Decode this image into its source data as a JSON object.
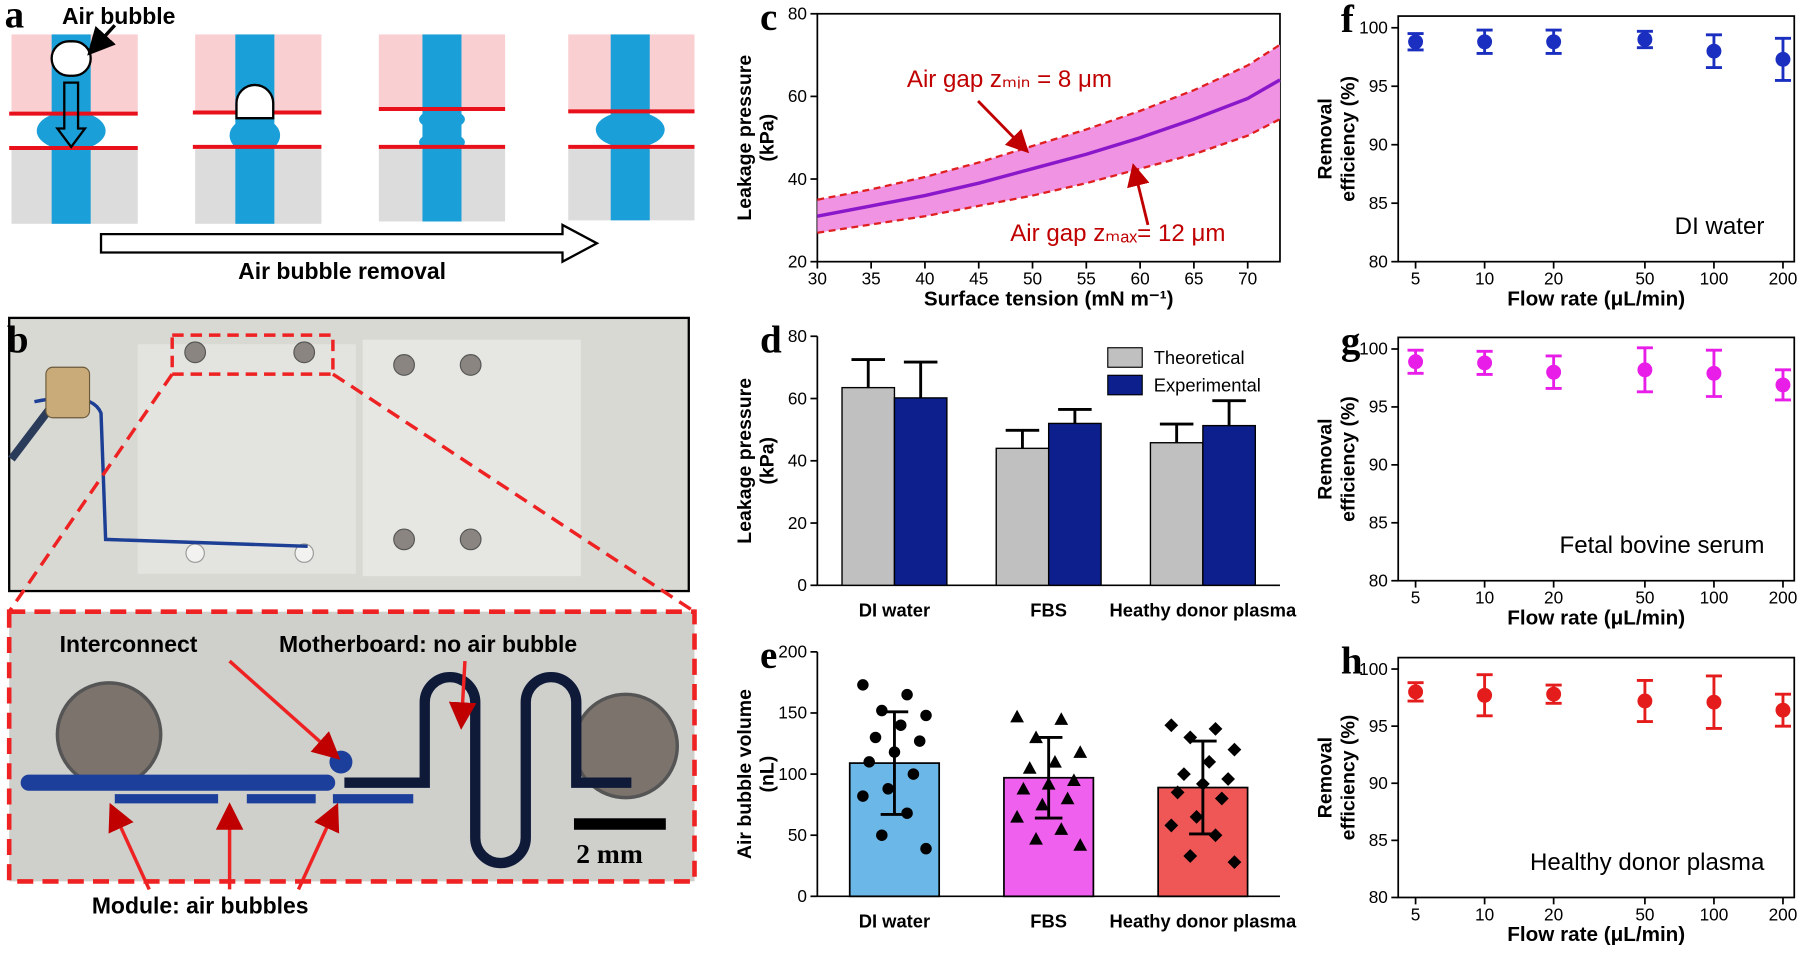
{
  "panel_a": {
    "label": "a",
    "callout": "Air bubble",
    "caption": "Air bubble removal"
  },
  "panel_b": {
    "label": "b",
    "annotations": [
      "Interconnect",
      "Motherboard: no air bubble",
      "Module: air bubbles"
    ],
    "scale_bar": "2 mm"
  },
  "chart_data": [
    {
      "type": "line",
      "panel": "c",
      "xlabel": "Surface tension (mN m⁻¹)",
      "ylabel": [
        "Leakage pressure",
        "(kPa)"
      ],
      "x": [
        30,
        35,
        40,
        45,
        50,
        55,
        60,
        65,
        70,
        73
      ],
      "series": [
        {
          "color": "#e02020",
          "dash": true,
          "values": [
            35,
            37.5,
            40.5,
            44,
            48,
            52,
            56.5,
            61.5,
            67.5,
            72.5
          ]
        },
        {
          "color": "#e02020",
          "dash": true,
          "values": [
            27,
            29,
            31,
            33.5,
            36,
            39,
            42.5,
            46,
            50.5,
            54.5
          ]
        },
        {
          "color": "#8a17c9",
          "values": [
            31,
            33.5,
            36,
            39,
            42.5,
            46,
            50,
            54.5,
            59.5,
            64
          ]
        }
      ],
      "band_color": "#f093e3",
      "frame": true,
      "xlim": [
        30,
        73
      ],
      "xticks": [
        30,
        35,
        40,
        45,
        50,
        55,
        60,
        65,
        70
      ],
      "ylim": [
        20,
        80
      ],
      "yticks": [
        20,
        40,
        60,
        80
      ],
      "annotations": [
        "Air gap zₘᵢₙ = 8 μm",
        "Air gap zₘₐₓ= 12 μm"
      ],
      "annotation_color": "#c00000"
    },
    {
      "type": "bar",
      "panel": "d",
      "ylabel": [
        "Leakage pressure",
        "(kPa)"
      ],
      "categories": [
        "DI water",
        "FBS",
        "Heathy donor plasma"
      ],
      "series": [
        {
          "name": "Theoretical",
          "color": "#c0c0c0",
          "values": [
            63.5,
            44,
            45.8
          ],
          "errors": [
            9,
            5.8,
            6
          ]
        },
        {
          "name": "Experimental",
          "color": "#0c1f8c",
          "values": [
            60.2,
            52,
            51.3
          ],
          "errors": [
            11.5,
            4.5,
            8
          ]
        }
      ],
      "legend": "upper right",
      "ylim": [
        0,
        80
      ],
      "yticks": [
        0,
        20,
        40,
        60,
        80
      ]
    },
    {
      "type": "bar",
      "panel": "e",
      "ylabel": [
        "Air bubble volume",
        "(nL)"
      ],
      "categories": [
        "DI water",
        "FBS",
        "Heathy donor plasma"
      ],
      "values": [
        109,
        97,
        89
      ],
      "errors": [
        42,
        33,
        38
      ],
      "colors": [
        "#6bb8e8",
        "#f060ee",
        "#ef5656"
      ],
      "markers": [
        "circle",
        "triangle",
        "diamond"
      ],
      "points": [
        [
          173,
          165,
          152,
          148,
          140,
          130,
          127,
          118,
          110,
          100,
          88,
          82,
          68,
          50,
          39
        ],
        [
          147,
          145,
          130,
          118,
          110,
          105,
          95,
          92,
          88,
          80,
          75,
          65,
          55,
          47,
          42
        ],
        [
          140,
          137,
          130,
          120,
          110,
          100,
          96,
          92,
          85,
          80,
          65,
          58,
          50,
          33,
          28
        ]
      ],
      "ylim": [
        0,
        200
      ],
      "yticks": [
        0,
        50,
        100,
        150,
        200
      ]
    },
    {
      "type": "scatter",
      "panel": "f",
      "xlabel": "Flow rate (μL/min)",
      "ylabel": [
        "Removal",
        "efficiency (%)"
      ],
      "x": [
        5,
        10,
        20,
        50,
        100,
        200
      ],
      "series": [
        {
          "color": "#1a2fbf",
          "values": [
            98.8,
            98.8,
            98.8,
            99,
            98,
            97.3
          ],
          "errors": [
            0.7,
            1,
            1,
            0.7,
            1.4,
            1.8
          ]
        }
      ],
      "xscale": "log",
      "frame": true,
      "xlim": [
        4.2,
        224
      ],
      "xticks": [
        5,
        10,
        20,
        50,
        100,
        200
      ],
      "ylim": [
        80,
        101
      ],
      "yticks": [
        80,
        85,
        90,
        95,
        100
      ],
      "annotations": [
        "DI water"
      ]
    },
    {
      "type": "scatter",
      "panel": "g",
      "xlabel": "Flow rate (μL/min)",
      "ylabel": [
        "Removal",
        "efficiency (%)"
      ],
      "x": [
        5,
        10,
        20,
        50,
        100,
        200
      ],
      "series": [
        {
          "color": "#e81de8",
          "values": [
            98.9,
            98.8,
            98,
            98.2,
            97.9,
            96.9
          ],
          "errors": [
            1,
            1,
            1.4,
            1.9,
            2,
            1.3
          ]
        }
      ],
      "xscale": "log",
      "frame": true,
      "xlim": [
        4.2,
        224
      ],
      "xticks": [
        5,
        10,
        20,
        50,
        100,
        200
      ],
      "ylim": [
        80,
        101
      ],
      "yticks": [
        80,
        85,
        90,
        95,
        100
      ],
      "annotations": [
        "Fetal bovine serum"
      ]
    },
    {
      "type": "scatter",
      "panel": "h",
      "xlabel": "Flow rate (μL/min)",
      "ylabel": [
        "Removal",
        "efficiency (%)"
      ],
      "x": [
        5,
        10,
        20,
        50,
        100,
        200
      ],
      "series": [
        {
          "color": "#e51c1c",
          "values": [
            98,
            97.7,
            97.8,
            97.2,
            97.1,
            96.4
          ],
          "errors": [
            0.8,
            1.8,
            0.8,
            1.8,
            2.3,
            1.4
          ]
        }
      ],
      "xscale": "log",
      "frame": true,
      "xlim": [
        4.2,
        224
      ],
      "xticks": [
        5,
        10,
        20,
        50,
        100,
        200
      ],
      "ylim": [
        80,
        101
      ],
      "yticks": [
        80,
        85,
        90,
        95,
        100
      ],
      "annotations": [
        "Healthy donor plasma"
      ]
    }
  ]
}
